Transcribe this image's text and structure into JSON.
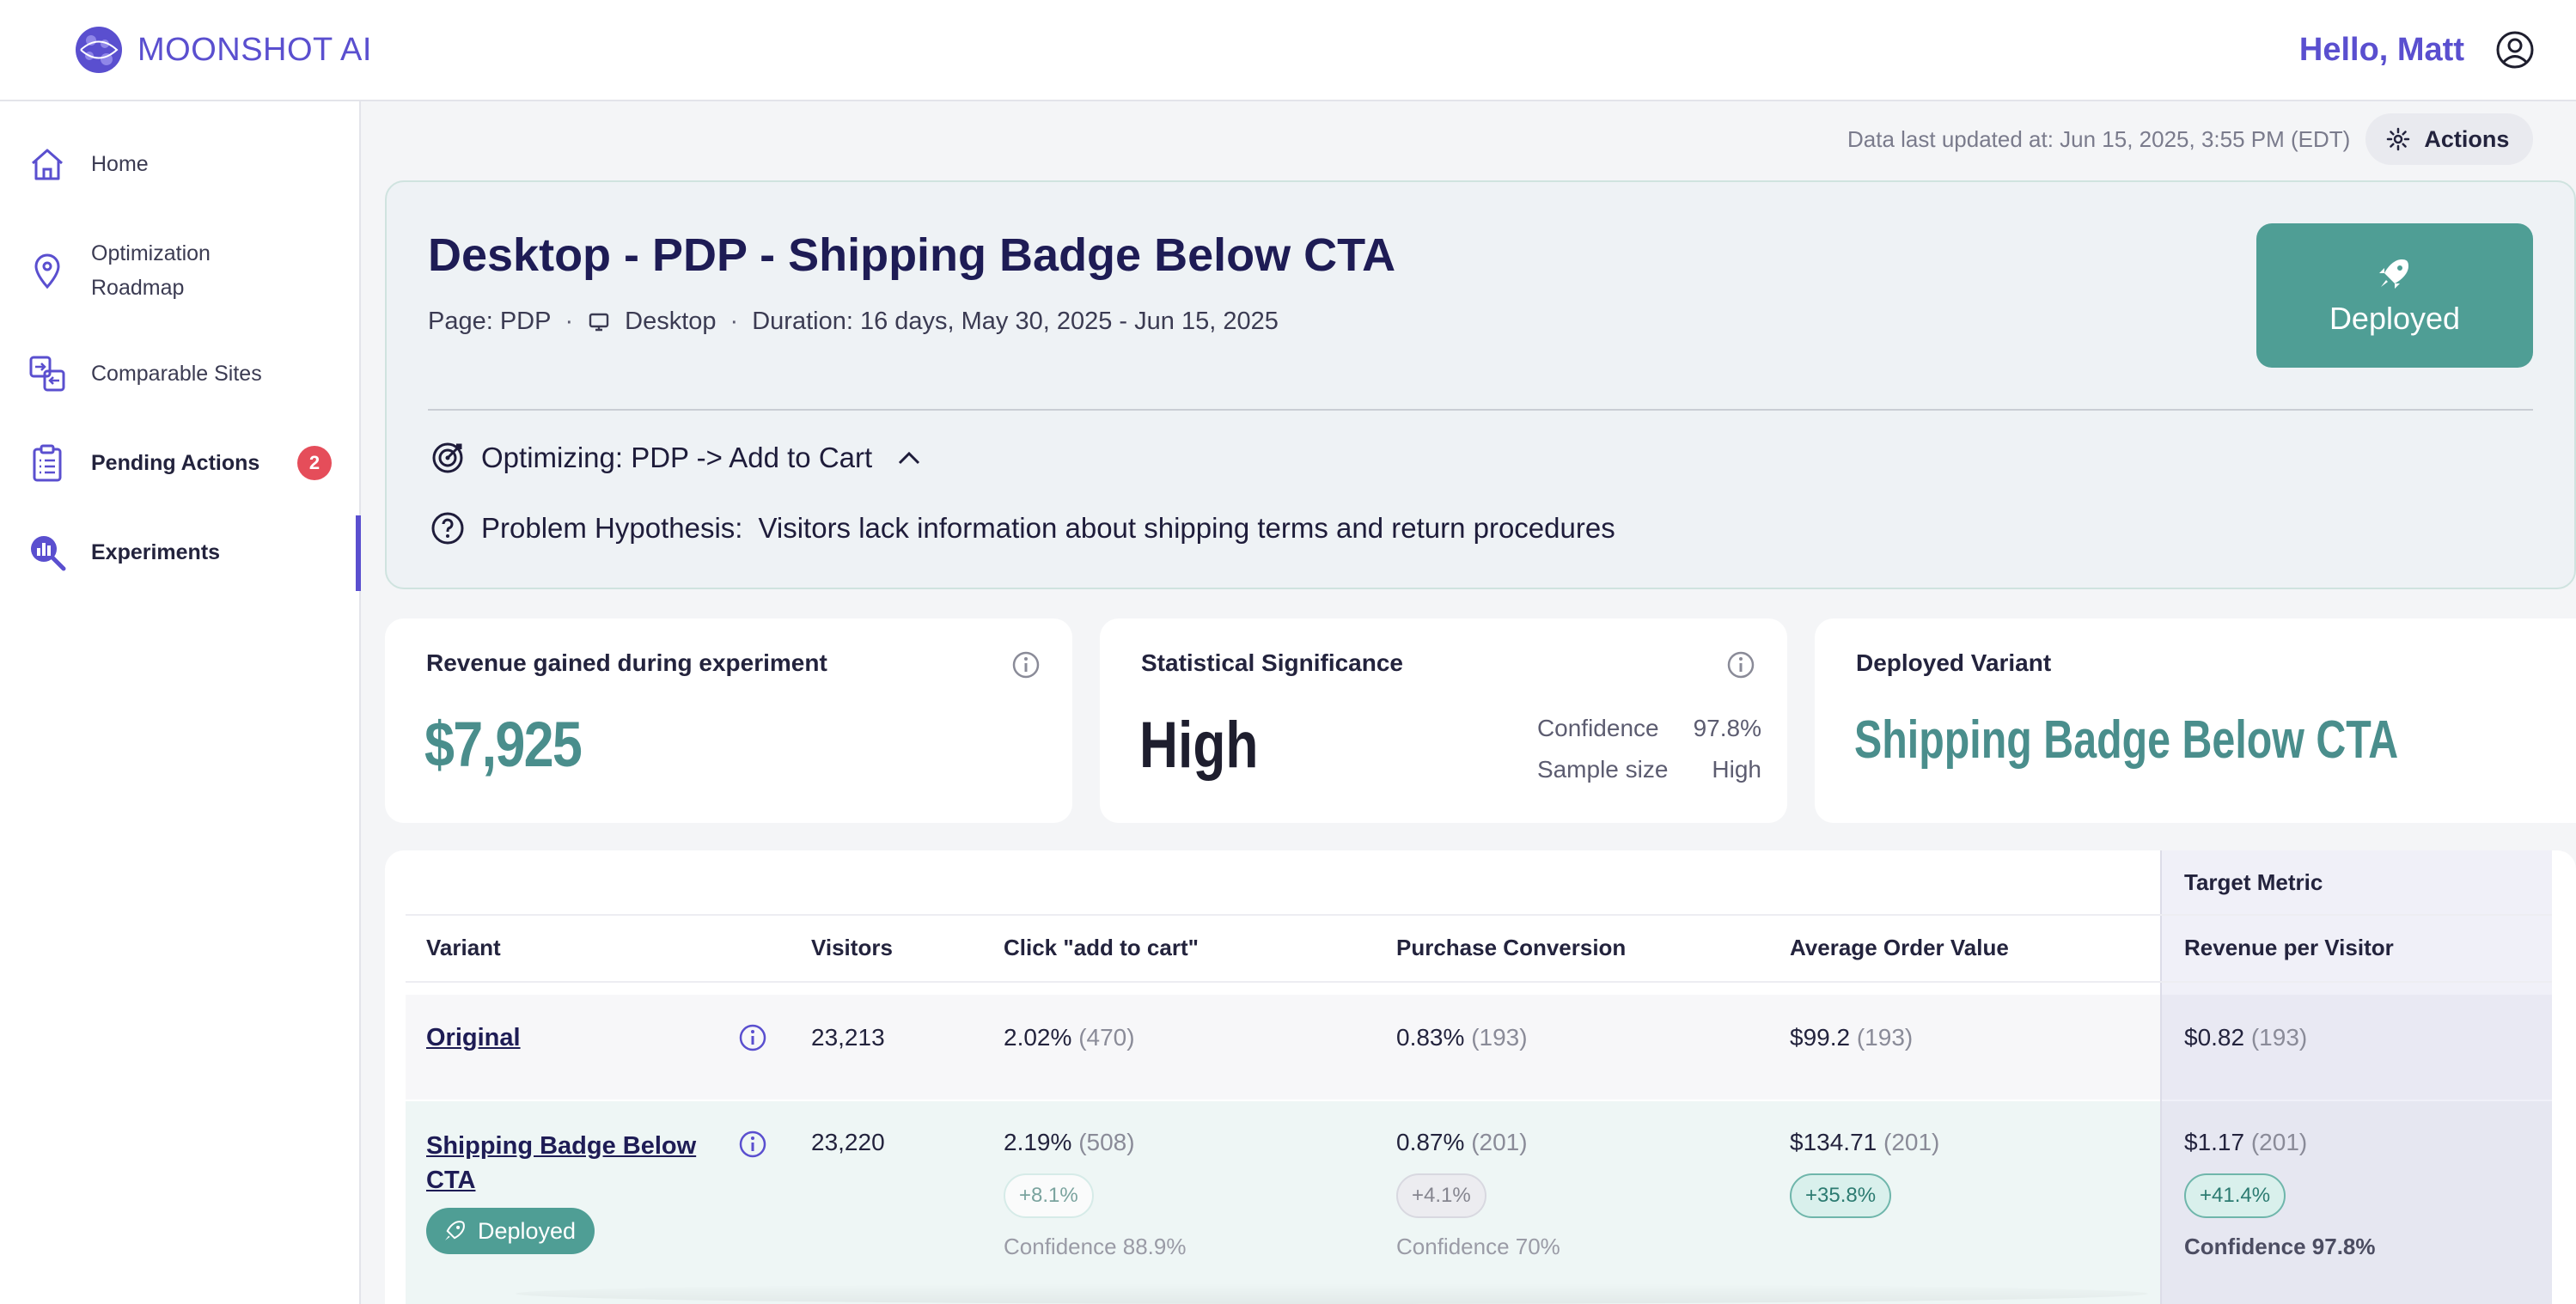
{
  "brand": {
    "name": "MOONSHOT AI",
    "accent": "#5a4fcf",
    "teal": "#4f9e95"
  },
  "header": {
    "greeting": "Hello, Matt"
  },
  "sidebar": {
    "items": [
      {
        "label": "Home",
        "icon": "home-icon"
      },
      {
        "label": "Optimization Roadmap",
        "icon": "map-pin-icon"
      },
      {
        "label": "Comparable Sites",
        "icon": "compare-icon"
      },
      {
        "label": "Pending Actions",
        "icon": "clipboard-icon",
        "badge": "2"
      },
      {
        "label": "Experiments",
        "icon": "chart-search-icon",
        "active": true
      }
    ]
  },
  "status": {
    "updated": "Data last updated at: Jun 15, 2025, 3:55 PM (EDT)",
    "actions_label": "Actions"
  },
  "experiment": {
    "title": "Desktop - PDP - Shipping Badge Below CTA",
    "page": "Page: PDP",
    "device": "Desktop",
    "duration": "Duration: 16 days, May 30, 2025 - Jun 15, 2025",
    "deployed_label": "Deployed",
    "optimizing": "Optimizing: PDP -> Add to Cart",
    "hypothesis_label": "Problem Hypothesis:",
    "hypothesis": "Visitors lack information about shipping terms and return procedures"
  },
  "cards": {
    "revenue": {
      "label": "Revenue gained during experiment",
      "value": "$7,925"
    },
    "significance": {
      "label": "Statistical Significance",
      "value": "High",
      "confidence_label": "Confidence",
      "confidence_value": "97.8%",
      "sample_label": "Sample size",
      "sample_value": "High"
    },
    "deployed_variant": {
      "label": "Deployed Variant",
      "value": "Shipping Badge Below CTA"
    }
  },
  "table": {
    "target_metric_label": "Target Metric",
    "columns": [
      "Variant",
      "Visitors",
      "Click \"add to cart\"",
      "Purchase Conversion",
      "Average Order Value",
      "Revenue per Visitor"
    ],
    "rows": [
      {
        "variant": "Original",
        "visitors": "23,213",
        "atc": "2.02%",
        "atc_n": "(470)",
        "pc": "0.83%",
        "pc_n": "(193)",
        "aov": "$99.2",
        "aov_n": "(193)",
        "rpv": "$0.82",
        "rpv_n": "(193)"
      },
      {
        "variant": "Shipping Badge Below CTA",
        "deployed_label": "Deployed",
        "visitors": "23,220",
        "atc": "2.19%",
        "atc_n": "(508)",
        "atc_lift": "+8.1%",
        "atc_conf": "Confidence 88.9%",
        "pc": "0.87%",
        "pc_n": "(201)",
        "pc_lift": "+4.1%",
        "pc_conf": "Confidence 70%",
        "aov": "$134.71",
        "aov_n": "(201)",
        "aov_lift": "+35.8%",
        "rpv": "$1.17",
        "rpv_n": "(201)",
        "rpv_lift": "+41.4%",
        "rpv_conf": "Confidence 97.8%"
      }
    ]
  }
}
